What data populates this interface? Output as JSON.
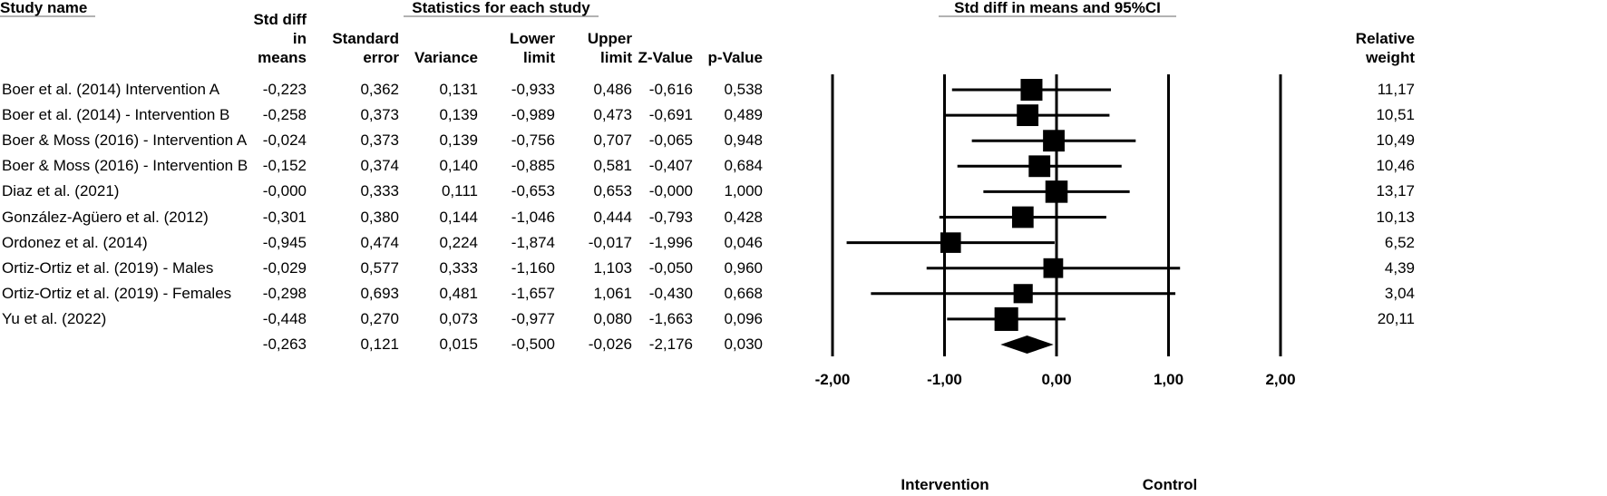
{
  "chart_data": {
    "type": "forest",
    "headers": {
      "study": "Study name",
      "statistics": "Statistics for each study",
      "plot": "Std diff in means and 95%CI"
    },
    "categories": [
      "Boer et al. (2014)  Intervention A",
      "Boer et al. (2014) - Intervention B",
      "Boer & Moss (2016) - Intervention A",
      "Boer & Moss (2016) - Intervention B",
      "Diaz et al. (2021)",
      "González-Agüero et al. (2012)",
      "Ordonez et al. (2014)",
      "Ortiz-Ortiz et al. (2019) - Males",
      "Ortiz-Ortiz et al. (2019) - Females",
      "Yu et al. (2022)",
      null
    ],
    "series": [
      {
        "name": "Std diff in means",
        "values": [
          -0.223,
          -0.258,
          -0.024,
          -0.152,
          0,
          -0.301,
          -0.945,
          -0.029,
          -0.298,
          -0.448,
          -0.263
        ],
        "value_labels": [
          "-0,223",
          "-0,258",
          "-0,024",
          "-0,152",
          "-0,000",
          "-0,301",
          "-0,945",
          "-0,029",
          "-0,298",
          "-0,448",
          "-0,263"
        ]
      },
      {
        "name": "Standard error",
        "values": [
          0.362,
          0.373,
          0.373,
          0.374,
          0.333,
          0.38,
          0.474,
          0.577,
          0.693,
          0.27,
          0.121
        ],
        "value_labels": [
          "0,362",
          "0,373",
          "0,373",
          "0,374",
          "0,333",
          "0,380",
          "0,474",
          "0,577",
          "0,693",
          "0,270",
          "0,121"
        ]
      },
      {
        "name": "Variance",
        "values": [
          0.131,
          0.139,
          0.139,
          0.14,
          0.111,
          0.144,
          0.224,
          0.333,
          0.481,
          0.073,
          0.015
        ],
        "value_labels": [
          "0,131",
          "0,139",
          "0,139",
          "0,140",
          "0,111",
          "0,144",
          "0,224",
          "0,333",
          "0,481",
          "0,073",
          "0,015"
        ]
      },
      {
        "name": "Lower limit",
        "values": [
          -0.933,
          -0.989,
          -0.756,
          -0.885,
          -0.653,
          -1.046,
          -1.874,
          -1.16,
          -1.657,
          -0.977,
          -0.5
        ],
        "value_labels": [
          "-0,933",
          "-0,989",
          "-0,756",
          "-0,885",
          "-0,653",
          "-1,046",
          "-1,874",
          "-1,160",
          "-1,657",
          "-0,977",
          "-0,500"
        ]
      },
      {
        "name": "Upper limit",
        "values": [
          0.486,
          0.473,
          0.707,
          0.581,
          0.653,
          0.444,
          -0.017,
          1.103,
          1.061,
          0.08,
          -0.026
        ],
        "value_labels": [
          "0,486",
          "0,473",
          "0,707",
          "0,581",
          "0,653",
          "0,444",
          "-0,017",
          "1,103",
          "1,061",
          "0,080",
          "-0,026"
        ]
      },
      {
        "name": "Z-Value",
        "values": [
          -0.616,
          -0.691,
          -0.065,
          -0.407,
          0,
          -0.793,
          -1.996,
          -0.05,
          -0.43,
          -1.663,
          -2.176
        ],
        "value_labels": [
          "-0,616",
          "-0,691",
          "-0,065",
          "-0,407",
          "-0,000",
          "-0,793",
          "-1,996",
          "-0,050",
          "-0,430",
          "-1,663",
          "-2,176"
        ]
      },
      {
        "name": "p-Value",
        "values": [
          0.538,
          0.489,
          0.948,
          0.684,
          1,
          0.428,
          0.046,
          0.96,
          0.668,
          0.096,
          0.03
        ],
        "value_labels": [
          "0,538",
          "0,489",
          "0,948",
          "0,684",
          "1,000",
          "0,428",
          "0,046",
          "0,960",
          "0,668",
          "0,096",
          "0,030"
        ]
      },
      {
        "name": "Relative weight",
        "values": [
          11.17,
          10.51,
          10.49,
          10.46,
          13.17,
          10.13,
          6.52,
          4.39,
          3.04,
          20.11,
          null
        ],
        "value_labels": [
          "11,17",
          "10,51",
          "10,49",
          "10,46",
          "13,17",
          "10,13",
          "6,52",
          "4,39",
          "3,04",
          "20,11",
          null
        ]
      }
    ],
    "xlim": [
      -2,
      2
    ],
    "xticks": [
      {
        "value": -2,
        "label": "-2,00"
      },
      {
        "value": -1,
        "label": "-1,00"
      },
      {
        "value": 0,
        "label": "0,00"
      },
      {
        "value": 1,
        "label": "1,00"
      },
      {
        "value": 2,
        "label": "2,00"
      }
    ],
    "grid": true,
    "annotations": {
      "left": "Intervention",
      "right": "Control"
    },
    "color": "#000000"
  }
}
